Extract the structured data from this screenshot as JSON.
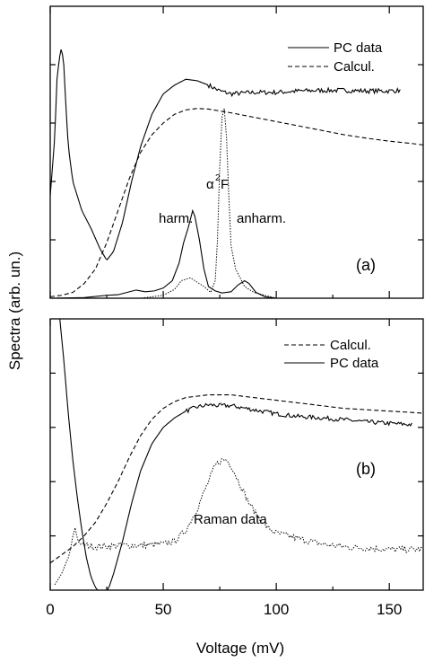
{
  "chart_data": {
    "type": "line",
    "xlabel": "Voltage (mV)",
    "ylabel": "Spectra (arb. un.)",
    "xlim": [
      0,
      165
    ],
    "x_ticks": [
      "0",
      "50",
      "100",
      "150"
    ],
    "panels": [
      {
        "id": "a",
        "tag": "(a)",
        "ylim": [
          0,
          1
        ],
        "legend": {
          "placement": "top-right",
          "entries": [
            {
              "name": "PC data",
              "style": "solid"
            },
            {
              "name": "Calcul.",
              "style": "dashed"
            }
          ]
        },
        "annotations": {
          "harm": "harm.",
          "anharm": "anharm.",
          "alpha": "α",
          "sup2": "2",
          "F": "F"
        },
        "series": [
          {
            "name": "PC data",
            "style": "solid",
            "noise": 0.008,
            "noiseFrom": 70,
            "points": [
              [
                0,
                0.35
              ],
              [
                2,
                0.55
              ],
              [
                3,
                0.75
              ],
              [
                4,
                0.82
              ],
              [
                5,
                0.86
              ],
              [
                6,
                0.8
              ],
              [
                7,
                0.65
              ],
              [
                8,
                0.52
              ],
              [
                10,
                0.4
              ],
              [
                14,
                0.3
              ],
              [
                18,
                0.24
              ],
              [
                22,
                0.17
              ],
              [
                25,
                0.13
              ],
              [
                28,
                0.16
              ],
              [
                32,
                0.26
              ],
              [
                36,
                0.4
              ],
              [
                40,
                0.52
              ],
              [
                45,
                0.63
              ],
              [
                50,
                0.7
              ],
              [
                55,
                0.73
              ],
              [
                60,
                0.75
              ],
              [
                65,
                0.745
              ],
              [
                70,
                0.73
              ],
              [
                75,
                0.71
              ],
              [
                80,
                0.7
              ],
              [
                90,
                0.705
              ],
              [
                100,
                0.705
              ],
              [
                110,
                0.71
              ],
              [
                120,
                0.712
              ],
              [
                130,
                0.712
              ],
              [
                140,
                0.71
              ],
              [
                150,
                0.71
              ],
              [
                155,
                0.712
              ]
            ]
          },
          {
            "name": "Calcul.",
            "style": "dashed",
            "points": [
              [
                0,
                0.005
              ],
              [
                5,
                0.01
              ],
              [
                10,
                0.02
              ],
              [
                15,
                0.05
              ],
              [
                20,
                0.1
              ],
              [
                25,
                0.19
              ],
              [
                30,
                0.3
              ],
              [
                35,
                0.41
              ],
              [
                40,
                0.5
              ],
              [
                45,
                0.56
              ],
              [
                50,
                0.6
              ],
              [
                55,
                0.63
              ],
              [
                60,
                0.645
              ],
              [
                65,
                0.65
              ],
              [
                70,
                0.648
              ],
              [
                80,
                0.635
              ],
              [
                90,
                0.62
              ],
              [
                100,
                0.605
              ],
              [
                110,
                0.59
              ],
              [
                120,
                0.575
              ],
              [
                130,
                0.56
              ],
              [
                140,
                0.548
              ],
              [
                150,
                0.538
              ],
              [
                160,
                0.53
              ],
              [
                165,
                0.525
              ]
            ]
          },
          {
            "name": "harm.",
            "style": "solid",
            "points": [
              [
                0,
                0
              ],
              [
                15,
                0.002
              ],
              [
                25,
                0.01
              ],
              [
                30,
                0.012
              ],
              [
                35,
                0.022
              ],
              [
                38,
                0.028
              ],
              [
                42,
                0.022
              ],
              [
                46,
                0.025
              ],
              [
                50,
                0.035
              ],
              [
                54,
                0.06
              ],
              [
                57,
                0.12
              ],
              [
                59,
                0.19
              ],
              [
                61,
                0.24
              ],
              [
                62,
                0.27
              ],
              [
                63,
                0.3
              ],
              [
                64,
                0.28
              ],
              [
                66,
                0.2
              ],
              [
                68,
                0.1
              ],
              [
                70,
                0.04
              ],
              [
                73,
                0.025
              ],
              [
                76,
                0.018
              ],
              [
                80,
                0.022
              ],
              [
                83,
                0.045
              ],
              [
                86,
                0.06
              ],
              [
                88,
                0.05
              ],
              [
                91,
                0.02
              ],
              [
                95,
                0.005
              ],
              [
                100,
                0
              ]
            ]
          },
          {
            "name": "α²F",
            "style": "dotted",
            "points": [
              [
                0,
                0
              ],
              [
                40,
                0
              ],
              [
                50,
                0.01
              ],
              [
                55,
                0.03
              ],
              [
                58,
                0.06
              ],
              [
                62,
                0.07
              ],
              [
                65,
                0.055
              ],
              [
                68,
                0.04
              ],
              [
                71,
                0.02
              ],
              [
                73,
                0.06
              ],
              [
                74,
                0.2
              ],
              [
                75,
                0.45
              ],
              [
                76,
                0.62
              ],
              [
                77,
                0.65
              ],
              [
                78,
                0.55
              ],
              [
                79,
                0.35
              ],
              [
                80,
                0.18
              ],
              [
                82,
                0.1
              ],
              [
                84,
                0.07
              ],
              [
                86,
                0.04
              ],
              [
                90,
                0.02
              ],
              [
                95,
                0.01
              ],
              [
                100,
                0
              ]
            ]
          }
        ]
      },
      {
        "id": "b",
        "tag": "(b)",
        "ylim": [
          0,
          1
        ],
        "legend": {
          "placement": "top-right",
          "entries": [
            {
              "name": "Calcul.",
              "style": "dashed"
            },
            {
              "name": "PC data",
              "style": "solid"
            }
          ]
        },
        "annotations": {
          "raman": "Raman data"
        },
        "series": [
          {
            "name": "Calcul.",
            "style": "dashed",
            "points": [
              [
                0,
                0.1
              ],
              [
                5,
                0.13
              ],
              [
                10,
                0.16
              ],
              [
                15,
                0.2
              ],
              [
                20,
                0.25
              ],
              [
                25,
                0.32
              ],
              [
                30,
                0.4
              ],
              [
                35,
                0.49
              ],
              [
                40,
                0.57
              ],
              [
                45,
                0.63
              ],
              [
                50,
                0.67
              ],
              [
                55,
                0.695
              ],
              [
                60,
                0.71
              ],
              [
                70,
                0.72
              ],
              [
                80,
                0.72
              ],
              [
                90,
                0.71
              ],
              [
                100,
                0.7
              ],
              [
                110,
                0.69
              ],
              [
                120,
                0.68
              ],
              [
                130,
                0.67
              ],
              [
                140,
                0.665
              ],
              [
                150,
                0.66
              ],
              [
                160,
                0.655
              ],
              [
                165,
                0.652
              ]
            ]
          },
          {
            "name": "PC data",
            "style": "solid",
            "noise": 0.008,
            "noiseFrom": 60,
            "points": [
              [
                4,
                1.02
              ],
              [
                6,
                0.85
              ],
              [
                8,
                0.65
              ],
              [
                10,
                0.48
              ],
              [
                12,
                0.34
              ],
              [
                14,
                0.22
              ],
              [
                16,
                0.12
              ],
              [
                18,
                0.05
              ],
              [
                20,
                0.01
              ],
              [
                22,
                -0.01
              ],
              [
                24,
                -0.015
              ],
              [
                26,
                0.01
              ],
              [
                28,
                0.06
              ],
              [
                32,
                0.18
              ],
              [
                36,
                0.32
              ],
              [
                40,
                0.44
              ],
              [
                45,
                0.54
              ],
              [
                50,
                0.6
              ],
              [
                55,
                0.635
              ],
              [
                60,
                0.66
              ],
              [
                65,
                0.675
              ],
              [
                70,
                0.683
              ],
              [
                75,
                0.68
              ],
              [
                80,
                0.68
              ],
              [
                90,
                0.665
              ],
              [
                100,
                0.65
              ],
              [
                110,
                0.64
              ],
              [
                120,
                0.635
              ],
              [
                130,
                0.628
              ],
              [
                140,
                0.62
              ],
              [
                150,
                0.615
              ],
              [
                160,
                0.61
              ]
            ]
          },
          {
            "name": "Raman data",
            "style": "dotted",
            "noise": 0.012,
            "noiseFrom": 14,
            "points": [
              [
                2,
                0.02
              ],
              [
                5,
                0.06
              ],
              [
                8,
                0.12
              ],
              [
                9,
                0.15
              ],
              [
                10,
                0.2
              ],
              [
                11,
                0.23
              ],
              [
                12,
                0.19
              ],
              [
                13,
                0.17
              ],
              [
                16,
                0.165
              ],
              [
                20,
                0.16
              ],
              [
                30,
                0.165
              ],
              [
                40,
                0.165
              ],
              [
                50,
                0.17
              ],
              [
                55,
                0.18
              ],
              [
                60,
                0.22
              ],
              [
                65,
                0.3
              ],
              [
                70,
                0.4
              ],
              [
                73,
                0.46
              ],
              [
                76,
                0.48
              ],
              [
                78,
                0.48
              ],
              [
                80,
                0.46
              ],
              [
                84,
                0.39
              ],
              [
                88,
                0.32
              ],
              [
                92,
                0.27
              ],
              [
                96,
                0.23
              ],
              [
                100,
                0.21
              ],
              [
                110,
                0.19
              ],
              [
                120,
                0.17
              ],
              [
                130,
                0.16
              ],
              [
                140,
                0.155
              ],
              [
                150,
                0.15
              ],
              [
                160,
                0.15
              ],
              [
                165,
                0.15
              ]
            ]
          }
        ]
      }
    ]
  }
}
